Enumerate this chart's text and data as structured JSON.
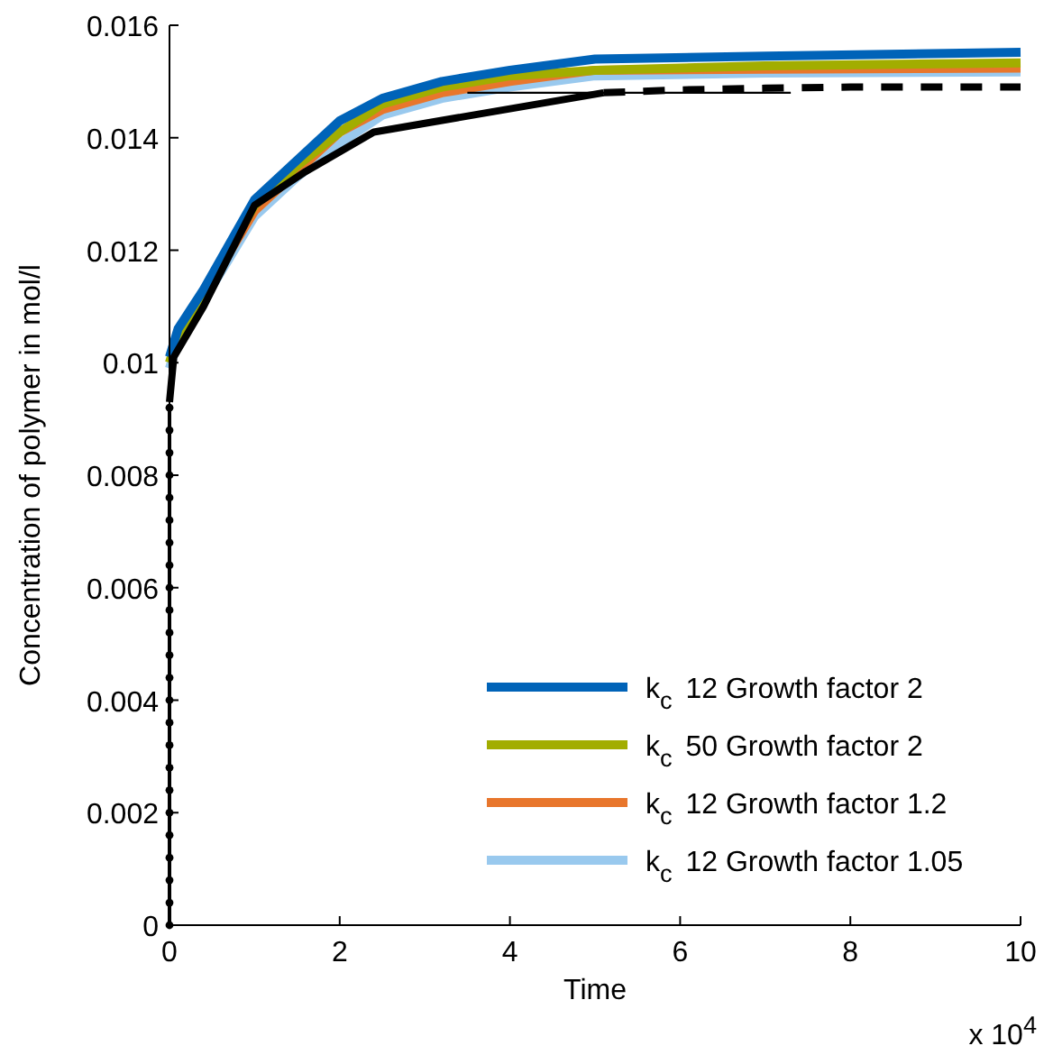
{
  "chart_data": {
    "type": "line",
    "xlabel": "Time",
    "ylabel": "Concentration of polymer in mol/l",
    "annotations": [
      "x 10$^{4}$"
    ],
    "xlim": [
      0,
      10
    ],
    "xticks": [
      0,
      2,
      4,
      6,
      8,
      10
    ],
    "ylim": [
      0,
      0.016
    ],
    "yticks": [
      0,
      0.002,
      0.004,
      0.006,
      0.008,
      0.01,
      0.012,
      0.014,
      0.016
    ],
    "grid": false,
    "legend": "bottom right",
    "line_style": "solid",
    "marker": "none",
    "series": [
      {
        "color": "#000000",
        "x": [
          0,
          0,
          0,
          0,
          0,
          0,
          0,
          0,
          0,
          0,
          0,
          0,
          0,
          0,
          0,
          0,
          0,
          0,
          0,
          0,
          0,
          0,
          0,
          0
        ],
        "values": [
          0,
          0.0004,
          0.0008,
          0.0012,
          0.0016,
          0.002,
          0.0024,
          0.0028,
          0.0032,
          0.0036,
          0.004,
          0.0044,
          0.0048,
          0.0052,
          0.0056,
          0.006,
          0.0064,
          0.0068,
          0.0072,
          0.0076,
          0.008,
          0.0084,
          0.0088,
          0.0092
        ],
        "marker": "circle",
        "line_style": "solid"
      },
      {
        "color": "#000000",
        "x": [
          5.1,
          6,
          7,
          8,
          9,
          10
        ],
        "values": [
          0.0148,
          0.01485,
          0.01488,
          0.0149,
          0.0149,
          0.0149
        ],
        "line_style": "dashed"
      },
      {
        "name": "k$_{c}$ 12 Growth factor 1.05",
        "color": "#99c9ee",
        "x": [
          0,
          0.1,
          0.4,
          1,
          1.5,
          2,
          2.5,
          3.2,
          4,
          5,
          7,
          10
        ],
        "values": [
          0.0099,
          0.0104,
          0.0111,
          0.0126,
          0.0133,
          0.0139,
          0.0144,
          0.0147,
          0.0149,
          0.0151,
          0.01515,
          0.01517
        ]
      },
      {
        "name": "k$_{c}$ 12 Growth factor 1.2",
        "color": "#e8762c",
        "x": [
          0.4,
          1,
          1.5,
          2,
          2.5,
          3.2,
          4,
          5,
          7,
          10
        ],
        "values": [
          0.0112,
          0.0127,
          0.0134,
          0.0141,
          0.0145,
          0.0148,
          0.015,
          0.0152,
          0.01522,
          0.01524
        ]
      },
      {
        "name": "k$_{c}$ 50 Growth factor 2",
        "color": "#a2ad00",
        "x": [
          0,
          0.1,
          0.4,
          1,
          1.5,
          2,
          2.5,
          3.2,
          4,
          5,
          7,
          10
        ],
        "values": [
          0.01,
          0.0105,
          0.0112,
          0.0128,
          0.0135,
          0.0141,
          0.0146,
          0.0149,
          0.0151,
          0.0152,
          0.01528,
          0.01533
        ]
      },
      {
        "name": "k$_{c}$ 12 Growth factor 2",
        "color": "#0063b8",
        "x": [
          0,
          0.1,
          0.4,
          1,
          1.5,
          2,
          2.5,
          3.2,
          4,
          5,
          7,
          10
        ],
        "values": [
          0.0101,
          0.0106,
          0.0113,
          0.0129,
          0.0136,
          0.0143,
          0.0147,
          0.015,
          0.0152,
          0.0154,
          0.01545,
          0.01552
        ]
      },
      {
        "color": "#000000",
        "x": [
          0,
          0.05,
          0.4,
          1,
          1.6,
          2.4,
          5.1
        ],
        "values": [
          0.0093,
          0.0101,
          0.011,
          0.0128,
          0.0134,
          0.0141,
          0.0148
        ],
        "line_style": "solid"
      },
      {
        "color": "#000000",
        "x": [
          3.5,
          7.3
        ],
        "values": [
          0.0148,
          0.0148
        ],
        "line_style": "solid"
      }
    ]
  }
}
